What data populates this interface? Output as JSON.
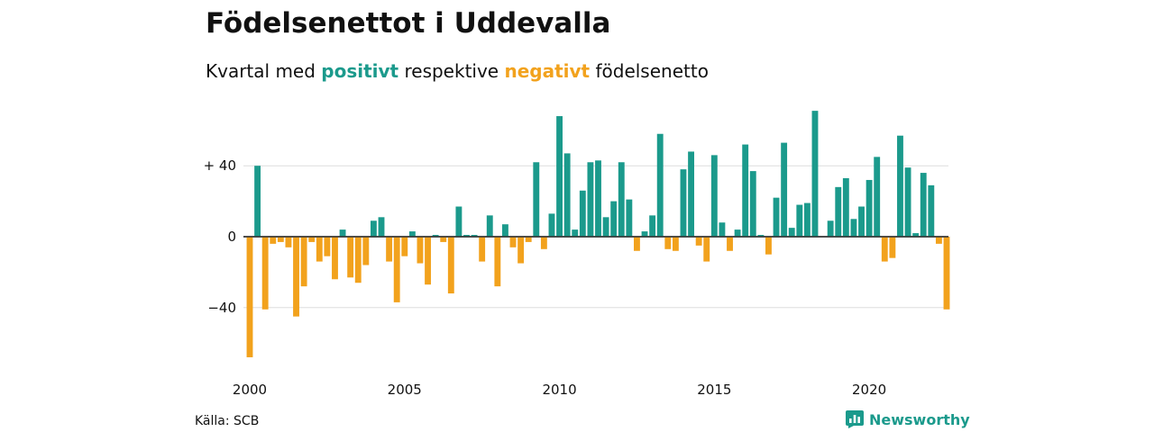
{
  "title": "Födelsenettot i Uddevalla",
  "subtitle": {
    "prefix": "Kvartal med ",
    "positive": "positivt",
    "middle": " respektive ",
    "negative": "negativt",
    "suffix": " födelsenetto"
  },
  "source": "Källa: SCB",
  "brand": "Newsworthy",
  "colors": {
    "positive": "#1b9a8c",
    "negative": "#f2a21d",
    "grid": "#dddddd",
    "axis": "#333333"
  },
  "chart_data": {
    "type": "bar",
    "x_unit": "quarter",
    "start_quarter": "2000-Q1",
    "ylim": [
      -68,
      72
    ],
    "yticks": [
      40,
      0,
      -40
    ],
    "ytick_labels": [
      "+ 40",
      "0",
      "−40"
    ],
    "xtick_years": [
      2000,
      2005,
      2010,
      2015,
      2020
    ],
    "xtick_labels": [
      "2000",
      "2005",
      "2010",
      "2015",
      "2020"
    ],
    "grid": true,
    "values": [
      -68,
      40,
      -41,
      -4,
      -3,
      -6,
      -45,
      -28,
      -3,
      -14,
      -11,
      -24,
      4,
      -23,
      -26,
      -16,
      9,
      11,
      -14,
      -37,
      -11,
      3,
      -15,
      -27,
      1,
      -3,
      -32,
      17,
      1,
      1,
      -14,
      12,
      -28,
      7,
      -6,
      -15,
      -3,
      42,
      -7,
      13,
      68,
      47,
      4,
      26,
      42,
      43,
      11,
      20,
      42,
      21,
      -8,
      3,
      12,
      58,
      -7,
      -8,
      38,
      48,
      -5,
      -14,
      46,
      8,
      -8,
      4,
      52,
      37,
      1,
      -10,
      22,
      53,
      5,
      18,
      19,
      71,
      0,
      9,
      28,
      33,
      10,
      17,
      32,
      45,
      -14,
      -12,
      57,
      39,
      2,
      36,
      29,
      -4,
      -41
    ]
  }
}
